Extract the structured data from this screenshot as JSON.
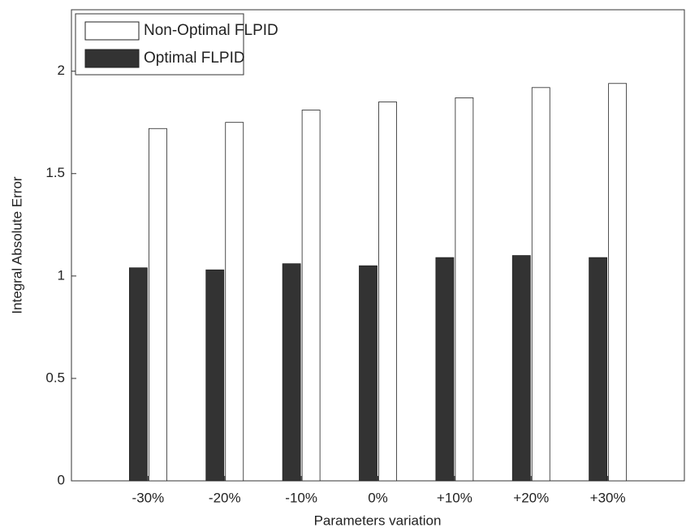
{
  "chart_data": {
    "type": "bar",
    "x_label": "Parameters variation",
    "y_label": "Integral Absolute Error",
    "categories": [
      "-30%",
      "-20%",
      "-10%",
      "0%",
      "+10%",
      "+20%",
      "+30%"
    ],
    "series": [
      {
        "name": "Non-Optimal FLPID",
        "color": "#ffffff",
        "values": [
          1.72,
          1.75,
          1.81,
          1.85,
          1.87,
          1.92,
          1.94
        ]
      },
      {
        "name": "Optimal FLPID",
        "color": "#333333",
        "values": [
          1.04,
          1.03,
          1.06,
          1.05,
          1.09,
          1.1,
          1.09
        ]
      }
    ],
    "ylim": [
      0,
      2.3
    ],
    "yticks": [
      0,
      0.5,
      1,
      {
        "value": 1.5,
        "label": "1.5"
      },
      2
    ],
    "legend": "upper-left"
  }
}
